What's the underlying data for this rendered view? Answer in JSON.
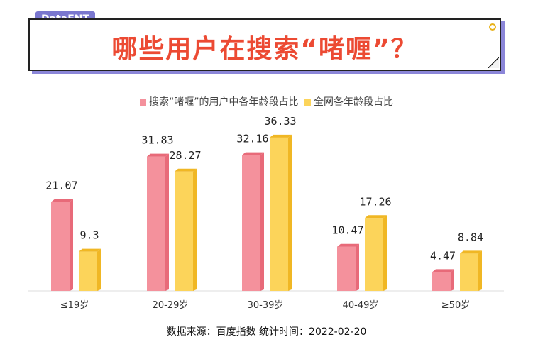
{
  "tag_label": "DataENT",
  "title": "哪些用户在搜索“啫喱”？",
  "legend": {
    "series1": "搜索“啫喱”的用户中各年龄段占比",
    "series2": "全网各年龄段占比"
  },
  "source": "数据来源：百度指数   统计时间：2022-02-20",
  "colors": {
    "series1": "#f4919c",
    "series2": "#fcd45a",
    "accent": "#7a77cf",
    "title": "#ec4a33"
  },
  "chart_data": {
    "type": "bar",
    "categories": [
      "≤19岁",
      "20-29岁",
      "30-39岁",
      "40-49岁",
      "≥50岁"
    ],
    "series": [
      {
        "name": "搜索“啫喱”的用户中各年龄段占比",
        "values": [
          21.07,
          31.83,
          32.16,
          10.47,
          4.47
        ],
        "labels": [
          "21.07",
          "31.83",
          "32.16",
          "10.47",
          "4.47"
        ]
      },
      {
        "name": "全网各年龄段占比",
        "values": [
          9.3,
          28.27,
          36.33,
          17.26,
          8.84
        ],
        "labels": [
          "9.3",
          "28.27",
          "36.33",
          "17.26",
          "8.84"
        ]
      }
    ],
    "ylim": [
      0,
      40
    ],
    "grid": false,
    "legend_position": "top-center"
  }
}
